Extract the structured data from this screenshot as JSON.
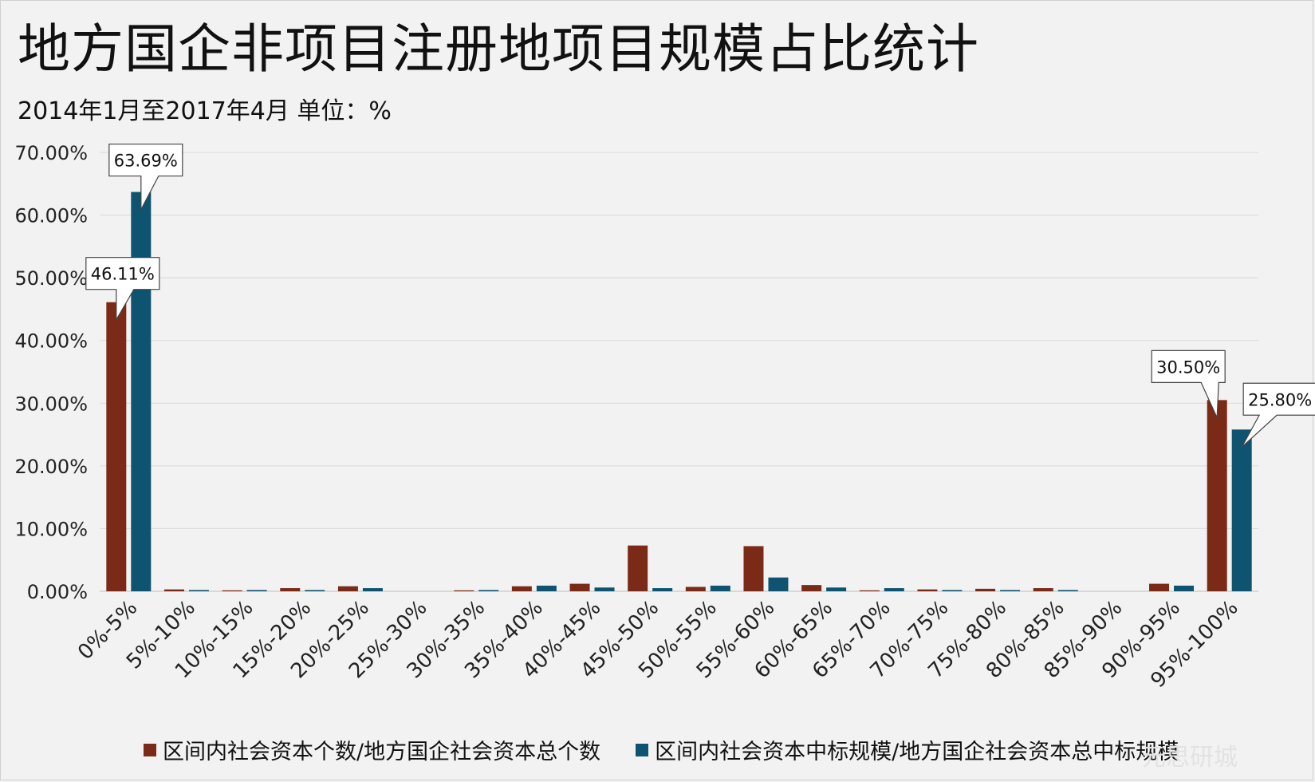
{
  "title": "地方国企非项目注册地项目规模占比统计",
  "subtitle": "2014年1月至2017年4月  单位：%",
  "watermark": "元思研城",
  "colors": {
    "series1": "#7b2a17",
    "series2": "#0e5470",
    "grid": "#d9d9d9",
    "background": "#f2f2f2"
  },
  "chart_data": {
    "type": "bar",
    "categories": [
      "0%-5%",
      "5%-10%",
      "10%-15%",
      "15%-20%",
      "20%-25%",
      "25%-30%",
      "30%-35%",
      "35%-40%",
      "40%-45%",
      "45%-50%",
      "50%-55%",
      "55%-60%",
      "60%-65%",
      "65%-70%",
      "70%-75%",
      "75%-80%",
      "80%-85%",
      "85%-90%",
      "90%-95%",
      "95%-100%"
    ],
    "series": [
      {
        "name": "区间内社会资本个数/地方国企社会资本总个数",
        "color": "#7b2a17",
        "values": [
          46.11,
          0.3,
          0.15,
          0.5,
          0.8,
          0,
          0.15,
          0.8,
          1.2,
          7.3,
          0.7,
          7.2,
          1.0,
          0.15,
          0.3,
          0.4,
          0.5,
          0,
          1.2,
          30.5
        ]
      },
      {
        "name": "区间内社会资本中标规模/地方国企社会资本总中标规模",
        "color": "#0e5470",
        "values": [
          63.69,
          0.2,
          0.2,
          0.2,
          0.5,
          0,
          0.2,
          0.9,
          0.6,
          0.5,
          0.9,
          2.2,
          0.6,
          0.5,
          0.2,
          0.2,
          0.2,
          0,
          0.9,
          25.8
        ]
      }
    ],
    "ylim": [
      0,
      70
    ],
    "yticks": [
      "0.00%",
      "10.00%",
      "20.00%",
      "30.00%",
      "40.00%",
      "50.00%",
      "60.00%",
      "70.00%"
    ],
    "grid": true,
    "legend_position": "bottom",
    "callouts": [
      {
        "series": 0,
        "category": 0,
        "label": "46.11%"
      },
      {
        "series": 1,
        "category": 0,
        "label": "63.69%"
      },
      {
        "series": 0,
        "category": 19,
        "label": "30.50%"
      },
      {
        "series": 1,
        "category": 19,
        "label": "25.80%"
      }
    ]
  }
}
